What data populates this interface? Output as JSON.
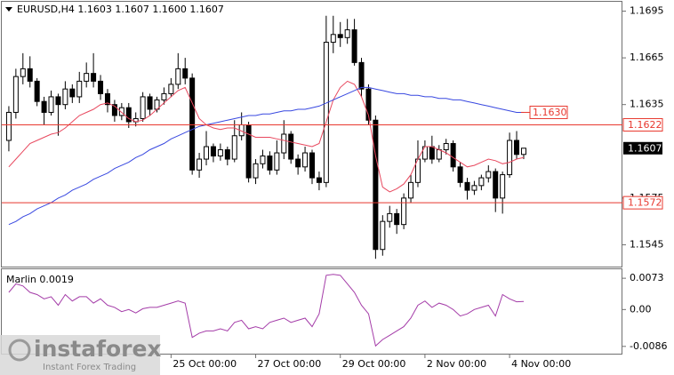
{
  "chart_data": [
    {
      "type": "candlestick",
      "title": "EURUSD,H4  1.1603 1.1607 1.1600 1.1607",
      "open": [
        1.1612,
        1.163,
        1.1653,
        1.1658,
        1.165,
        1.1637,
        1.163,
        1.164,
        1.1635,
        1.1645,
        1.164,
        1.165,
        1.1655,
        1.165,
        1.1642,
        1.1635,
        1.1628,
        1.1633,
        1.1624,
        1.1626,
        1.164,
        1.1632,
        1.1638,
        1.1642,
        1.1648,
        1.1658,
        1.1652,
        1.1593,
        1.16,
        1.1608,
        1.1602,
        1.1606,
        1.16,
        1.1615,
        1.1622,
        1.1588,
        1.1597,
        1.1602,
        1.1593,
        1.1604,
        1.1616,
        1.16,
        1.1595,
        1.1604,
        1.1588,
        1.1585,
        1.1675,
        1.168,
        1.1678,
        1.1683,
        1.1662,
        1.1645,
        1.1625,
        1.1542,
        1.156,
        1.1565,
        1.1558,
        1.1575,
        1.1585,
        1.16,
        1.1608,
        1.16,
        1.1606,
        1.161,
        1.1595,
        1.1585,
        1.158,
        1.1583,
        1.1588,
        1.1592,
        1.1575,
        1.159,
        1.1612,
        1.1603
      ],
      "high": [
        1.1634,
        1.1658,
        1.1668,
        1.1666,
        1.1652,
        1.164,
        1.1644,
        1.1642,
        1.165,
        1.1648,
        1.1656,
        1.1662,
        1.1668,
        1.1654,
        1.1645,
        1.1638,
        1.1636,
        1.1636,
        1.163,
        1.1643,
        1.1642,
        1.164,
        1.1646,
        1.1652,
        1.1668,
        1.1665,
        1.1655,
        1.1604,
        1.1618,
        1.161,
        1.161,
        1.1608,
        1.1625,
        1.163,
        1.1624,
        1.16,
        1.1606,
        1.1605,
        1.1612,
        1.1625,
        1.1618,
        1.1603,
        1.1608,
        1.1606,
        1.1592,
        1.1692,
        1.1692,
        1.1688,
        1.169,
        1.169,
        1.1665,
        1.1648,
        1.1628,
        1.1564,
        1.157,
        1.1568,
        1.1578,
        1.159,
        1.1612,
        1.1612,
        1.1615,
        1.1609,
        1.1613,
        1.1612,
        1.1598,
        1.1588,
        1.1586,
        1.159,
        1.1596,
        1.1594,
        1.1592,
        1.1617,
        1.1618,
        1.1607
      ],
      "low": [
        1.1605,
        1.1626,
        1.1648,
        1.1646,
        1.1634,
        1.1622,
        1.1628,
        1.1615,
        1.1632,
        1.1636,
        1.1636,
        1.1646,
        1.1646,
        1.1638,
        1.163,
        1.1624,
        1.1625,
        1.162,
        1.1621,
        1.1624,
        1.1628,
        1.163,
        1.1635,
        1.164,
        1.1645,
        1.1648,
        1.159,
        1.1588,
        1.1596,
        1.1598,
        1.1599,
        1.1596,
        1.1598,
        1.1612,
        1.1585,
        1.1584,
        1.1594,
        1.159,
        1.159,
        1.16,
        1.1597,
        1.159,
        1.1592,
        1.1584,
        1.158,
        1.1582,
        1.1668,
        1.1672,
        1.1674,
        1.166,
        1.164,
        1.1622,
        1.1536,
        1.1538,
        1.1556,
        1.1552,
        1.1555,
        1.1572,
        1.1582,
        1.1598,
        1.1597,
        1.1598,
        1.1603,
        1.1592,
        1.1582,
        1.1574,
        1.1577,
        1.158,
        1.1585,
        1.1566,
        1.1565,
        1.1588,
        1.16,
        1.16
      ],
      "close": [
        1.163,
        1.1653,
        1.1658,
        1.165,
        1.1637,
        1.163,
        1.164,
        1.1635,
        1.1645,
        1.164,
        1.165,
        1.1655,
        1.165,
        1.1642,
        1.1635,
        1.1628,
        1.1633,
        1.1624,
        1.1626,
        1.164,
        1.1632,
        1.1638,
        1.1642,
        1.1648,
        1.1658,
        1.1652,
        1.1593,
        1.16,
        1.1608,
        1.1602,
        1.1606,
        1.16,
        1.1615,
        1.1622,
        1.1588,
        1.1597,
        1.1602,
        1.1593,
        1.1604,
        1.1616,
        1.16,
        1.1595,
        1.1604,
        1.1588,
        1.1585,
        1.1675,
        1.168,
        1.1678,
        1.1683,
        1.1662,
        1.1645,
        1.1625,
        1.1542,
        1.156,
        1.1565,
        1.1558,
        1.1575,
        1.1585,
        1.16,
        1.1608,
        1.16,
        1.1606,
        1.161,
        1.1595,
        1.1585,
        1.158,
        1.1583,
        1.1588,
        1.1592,
        1.1575,
        1.159,
        1.1612,
        1.1603,
        1.1607
      ],
      "bull_color": "#ffffff",
      "bear_color": "#000000",
      "candle_outline": "#000000",
      "series": [
        {
          "type": "line",
          "color": "#e8485e",
          "values": [
            1.1595,
            1.16,
            1.1605,
            1.161,
            1.1612,
            1.1614,
            1.1616,
            1.1617,
            1.162,
            1.1624,
            1.1628,
            1.163,
            1.1632,
            1.1635,
            1.1636,
            1.1634,
            1.163,
            1.1626,
            1.1624,
            1.1625,
            1.1628,
            1.1632,
            1.1636,
            1.164,
            1.1644,
            1.1646,
            1.1636,
            1.1626,
            1.1622,
            1.162,
            1.1619,
            1.162,
            1.162,
            1.1618,
            1.1616,
            1.1614,
            1.1614,
            1.1614,
            1.1613,
            1.1612,
            1.1611,
            1.161,
            1.1609,
            1.1608,
            1.161,
            1.1624,
            1.1638,
            1.1646,
            1.165,
            1.1648,
            1.164,
            1.1628,
            1.1602,
            1.1582,
            1.1579,
            1.1581,
            1.1584,
            1.159,
            1.16,
            1.1608,
            1.1608,
            1.1606,
            1.1604,
            1.1601,
            1.1598,
            1.1595,
            1.1596,
            1.1598,
            1.16,
            1.1599,
            1.1597,
            1.1598,
            1.16,
            1.1601
          ]
        },
        {
          "type": "line",
          "color": "#3848e0",
          "values": [
            1.1558,
            1.156,
            1.1563,
            1.1565,
            1.1568,
            1.157,
            1.1572,
            1.1575,
            1.1577,
            1.158,
            1.1582,
            1.1584,
            1.1587,
            1.1589,
            1.1591,
            1.1594,
            1.1596,
            1.1598,
            1.1601,
            1.1603,
            1.1606,
            1.1608,
            1.161,
            1.1613,
            1.1615,
            1.1617,
            1.1619,
            1.1621,
            1.1622,
            1.1623,
            1.1624,
            1.1625,
            1.1626,
            1.1627,
            1.1628,
            1.1628,
            1.1629,
            1.1629,
            1.163,
            1.1631,
            1.1631,
            1.1632,
            1.1632,
            1.1633,
            1.1634,
            1.1636,
            1.1638,
            1.164,
            1.1642,
            1.1644,
            1.1646,
            1.1646,
            1.1645,
            1.1644,
            1.1643,
            1.1642,
            1.1642,
            1.1641,
            1.1641,
            1.164,
            1.164,
            1.1639,
            1.1639,
            1.1638,
            1.1638,
            1.1637,
            1.1636,
            1.1635,
            1.1634,
            1.1633,
            1.1632,
            1.1631,
            1.163,
            1.163
          ]
        }
      ],
      "levels": [
        1.1622,
        1.1572
      ],
      "level_color": "#e8382f",
      "annotation": {
        "value": 1.163,
        "label": "1.1630"
      },
      "last_price": 1.1607,
      "xlim": [
        -1,
        87
      ],
      "ylim": [
        1.1531,
        1.1701
      ],
      "yticks": [
        1.1695,
        1.1665,
        1.1635,
        1.1575,
        1.1545
      ],
      "xticks": [
        {
          "value": 23,
          "label": "25 Oct 00:00"
        },
        {
          "value": 35,
          "label": "27 Oct 00:00"
        },
        {
          "value": 47,
          "label": "29 Oct 00:00"
        },
        {
          "value": 59,
          "label": "2 Nov 00:00"
        },
        {
          "value": 71,
          "label": "4 Nov 00:00"
        }
      ]
    },
    {
      "type": "line",
      "title": "Marlin 0.0019",
      "series": [
        {
          "color": "#a43ca8",
          "values": [
            0.004,
            0.006,
            0.0055,
            0.004,
            0.0035,
            0.0025,
            0.003,
            0.001,
            0.0035,
            0.002,
            0.003,
            0.003,
            0.0015,
            0.0025,
            0.001,
            0.0005,
            -0.0005,
            0.0,
            -0.0008,
            0.0002,
            0.0005,
            0.0005,
            0.001,
            0.0015,
            0.002,
            0.0015,
            -0.0065,
            -0.0055,
            -0.005,
            -0.005,
            -0.0045,
            -0.005,
            -0.003,
            -0.0025,
            -0.0045,
            -0.004,
            -0.0045,
            -0.003,
            -0.0025,
            -0.002,
            -0.003,
            -0.0025,
            -0.002,
            -0.004,
            -0.001,
            0.008,
            0.0082,
            0.008,
            0.006,
            0.004,
            0.001,
            -0.001,
            -0.0085,
            -0.007,
            -0.006,
            -0.005,
            -0.004,
            -0.002,
            0.001,
            0.002,
            0.0005,
            0.0015,
            0.001,
            0.0,
            -0.0015,
            -0.001,
            0.0,
            0.0005,
            0.001,
            -0.0015,
            0.0035,
            0.0025,
            0.0018,
            0.0019
          ]
        }
      ],
      "xlim": [
        -1,
        87
      ],
      "ylim": [
        -0.0103,
        0.0094
      ],
      "yticks": [
        0.0073,
        {
          "value": 0,
          "label": "0.00"
        },
        -0.0086
      ]
    }
  ],
  "watermark": {
    "brand": "instaforex",
    "tagline": "Instant Forex Trading"
  }
}
